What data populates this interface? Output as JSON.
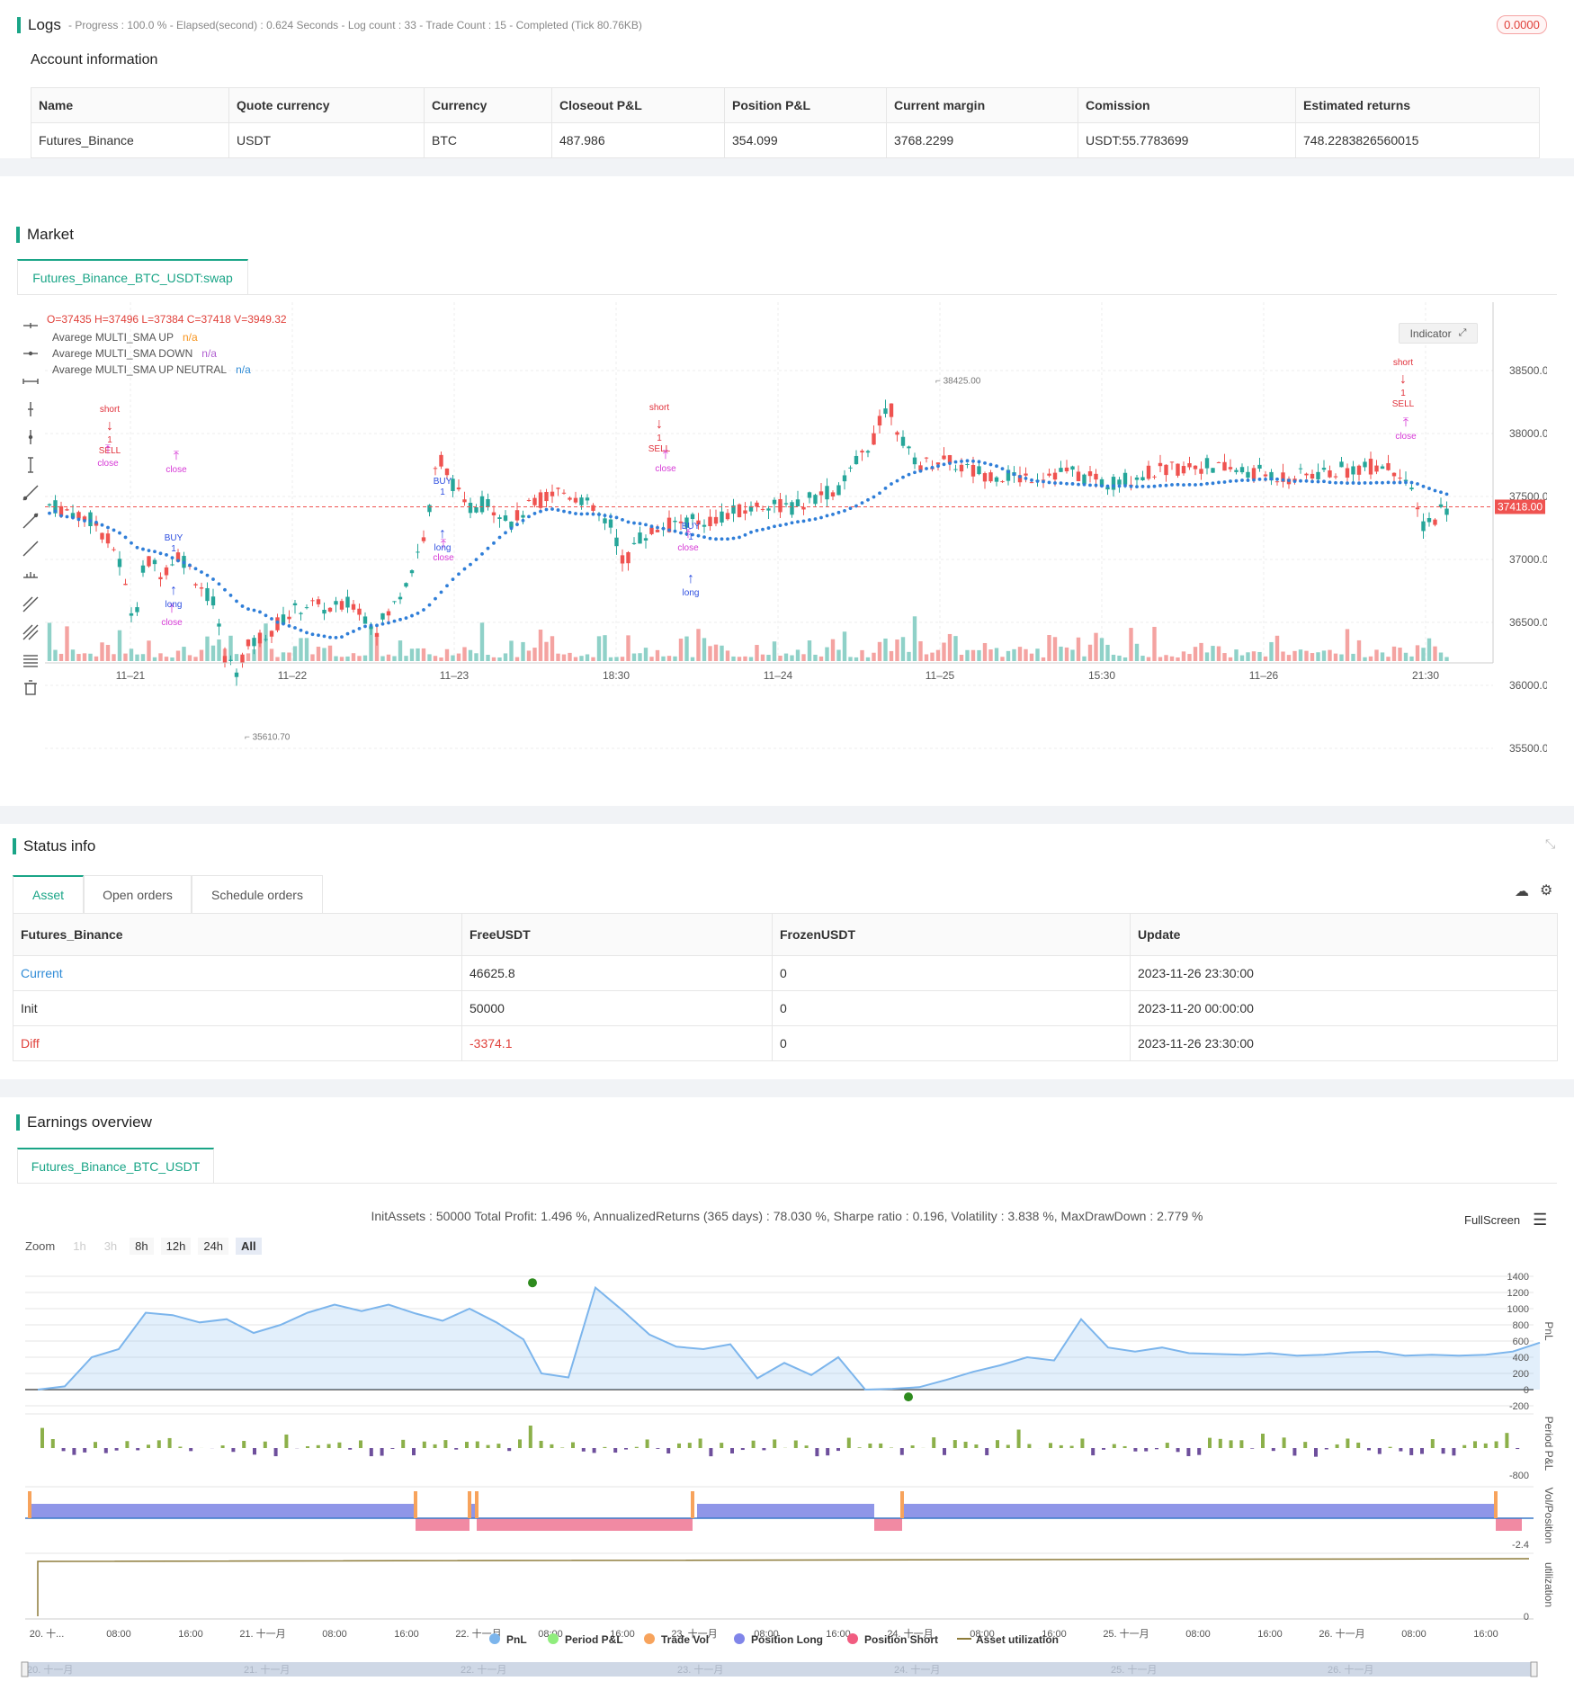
{
  "logs": {
    "title": "Logs",
    "status_line": "- Progress : 100.0 % - Elapsed(second) : 0.624  Seconds - Log count : 33 - Trade Count : 15 - Completed (Tick 80.76KB)",
    "badge": "0.0000"
  },
  "account": {
    "title": "Account information",
    "headers": [
      "Name",
      "Quote currency",
      "Currency",
      "Closeout P&L",
      "Position P&L",
      "Current margin",
      "Comission",
      "Estimated returns"
    ],
    "row": [
      "Futures_Binance",
      "USDT",
      "BTC",
      "487.986",
      "354.099",
      "3768.2299",
      "USDT:55.7783699",
      "748.2283826560015"
    ]
  },
  "market": {
    "title": "Market",
    "tab": "Futures_Binance_BTC_USDT:swap",
    "ohlc": "O=37435 H=37496 L=37384 C=37418 V=3949.32",
    "legend": [
      {
        "name": "Avarege MULTI_SMA UP",
        "value": "n/a",
        "color": "#f7941d"
      },
      {
        "name": "Avarege MULTI_SMA DOWN",
        "value": "n/a",
        "color": "#b05fd0"
      },
      {
        "name": "Avarege MULTI_SMA UP NEUTRAL",
        "value": "n/a",
        "color": "#2f8bd6"
      }
    ],
    "indicator_btn": "Indicator",
    "price_axis": [
      "38500.00",
      "38000.00",
      "37500.00",
      "37000.00",
      "36500.00",
      "36000.00",
      "35500.00"
    ],
    "current_price": "37418.00",
    "high_label": "38425.00",
    "low_label": "35610.70",
    "time_axis": [
      "11–21",
      "11–22",
      "11–23",
      "18:30",
      "11–24",
      "11–25",
      "15:30",
      "11–26",
      "21:30"
    ],
    "signals": {
      "short": "short",
      "sell": "SELL",
      "buy": "BUY",
      "long": "long",
      "close": "close",
      "one": "1"
    }
  },
  "status": {
    "title": "Status info",
    "tabs": [
      "Asset",
      "Open orders",
      "Schedule orders"
    ],
    "headers": [
      "Futures_Binance",
      "FreeUSDT",
      "FrozenUSDT",
      "Update"
    ],
    "rows": [
      [
        "Current",
        "46625.8",
        "0",
        "2023-11-26 23:30:00"
      ],
      [
        "Init",
        "50000",
        "0",
        "2023-11-20 00:00:00"
      ],
      [
        "Diff",
        "-3374.1",
        "0",
        "2023-11-26 23:30:00"
      ]
    ]
  },
  "earnings": {
    "title": "Earnings overview",
    "tab": "Futures_Binance_BTC_USDT",
    "summary": "InitAssets : 50000 Total Profit: 1.496 %, AnnualizedReturns (365 days) : 78.030 %, Sharpe ratio : 0.196, Volatility : 3.838 %, MaxDrawDown : 2.779 %",
    "fullscreen": "FullScreen",
    "zoom_label": "Zoom",
    "zoom": [
      "1h",
      "3h",
      "8h",
      "12h",
      "24h",
      "All"
    ],
    "pnl_axis": [
      "1400",
      "1200",
      "1000",
      "800",
      "600",
      "400",
      "200",
      "0",
      "-200"
    ],
    "period_axis": [
      "-800"
    ],
    "vol_axis": [
      "-2.4"
    ],
    "util_axis": [
      "0"
    ],
    "axis_titles": [
      "PnL",
      "Period P&L",
      "Vol/Position",
      "utilization"
    ],
    "time_axis": [
      "20. 十...",
      "08:00",
      "16:00",
      "21. 十一月",
      "08:00",
      "16:00",
      "22. 十一月",
      "08:00",
      "16:00",
      "23. 十一月",
      "08:00",
      "16:00",
      "24. 十一月",
      "08:00",
      "16:00",
      "25. 十一月",
      "08:00",
      "16:00",
      "26. 十一月",
      "08:00",
      "16:00"
    ],
    "legend": [
      {
        "name": "PnL",
        "color": "#7cb5ec"
      },
      {
        "name": "Period P&L",
        "color": "#90ed7d"
      },
      {
        "name": "Trade Vol",
        "color": "#f7a35c"
      },
      {
        "name": "Position Long",
        "color": "#8085e9"
      },
      {
        "name": "Position Short",
        "color": "#f15c80"
      },
      {
        "name": "Asset utilization",
        "color": "#8d7b3a"
      }
    ],
    "navigator": [
      "20. 十一月",
      "21. 十一月",
      "22. 十一月",
      "23. 十一月",
      "24. 十一月",
      "25. 十一月",
      "26. 十一月"
    ]
  }
}
